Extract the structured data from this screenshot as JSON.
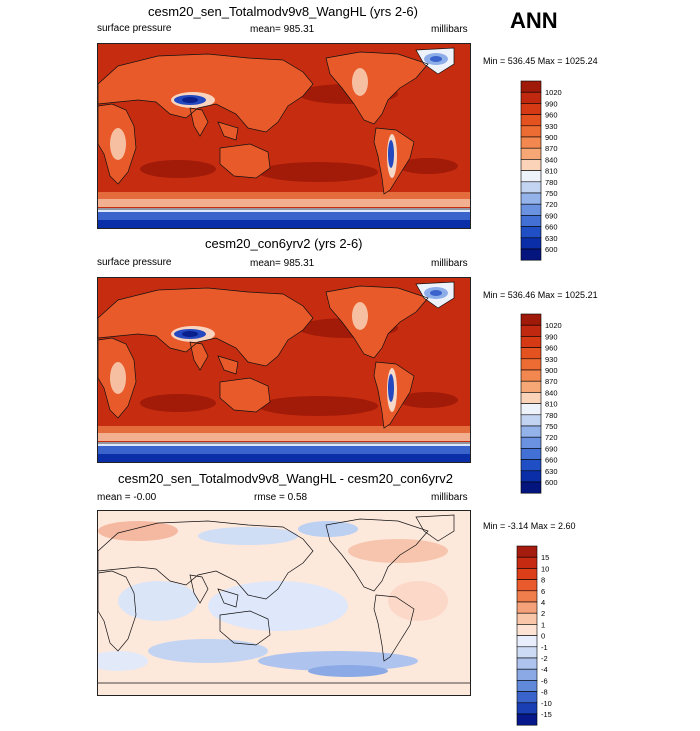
{
  "season": "ANN",
  "panels": [
    {
      "title": "cesm20_sen_Totalmodv9v8_WangHL (yrs 2-6)",
      "left_label": "surface pressure",
      "center_label": "mean= 985.31",
      "right_label": "millibars",
      "minmax": "Min = 536.45 Max = 1025.24",
      "colorbar_levels": [
        "1020",
        "990",
        "960",
        "930",
        "900",
        "870",
        "840",
        "810",
        "780",
        "750",
        "720",
        "690",
        "660",
        "630",
        "600"
      ],
      "colorbar_colors": [
        "#a01a0a",
        "#c0280f",
        "#d63a14",
        "#e4521f",
        "#ec6c34",
        "#f2884f",
        "#f6a775",
        "#fbd3b8",
        "#eef2fb",
        "#c3d4f3",
        "#94b3ea",
        "#6a92e0",
        "#4270d4",
        "#1f4ec5",
        "#0a2ea8",
        "#05157e"
      ],
      "field": "model"
    },
    {
      "title": "cesm20_con6yrv2 (yrs 2-6)",
      "left_label": "surface pressure",
      "center_label": "mean= 985.31",
      "right_label": "millibars",
      "minmax": "Min = 536.46 Max = 1025.21",
      "colorbar_levels": [
        "1020",
        "990",
        "960",
        "930",
        "900",
        "870",
        "840",
        "810",
        "780",
        "750",
        "720",
        "690",
        "660",
        "630",
        "600"
      ],
      "colorbar_colors": [
        "#a01a0a",
        "#c0280f",
        "#d63a14",
        "#e4521f",
        "#ec6c34",
        "#f2884f",
        "#f6a775",
        "#fbd3b8",
        "#eef2fb",
        "#c3d4f3",
        "#94b3ea",
        "#6a92e0",
        "#4270d4",
        "#1f4ec5",
        "#0a2ea8",
        "#05157e"
      ],
      "field": "control"
    },
    {
      "title": "cesm20_sen_Totalmodv9v8_WangHL - cesm20_con6yrv2",
      "left_label": "mean =  -0.00",
      "center_label": "rmse =   0.58",
      "right_label": "millibars",
      "minmax": "Min =  -3.14 Max =   2.60",
      "colorbar_levels": [
        "15",
        "10",
        "8",
        "6",
        "4",
        "2",
        "1",
        "0",
        "-1",
        "-2",
        "-4",
        "-6",
        "-8",
        "-10",
        "-15"
      ],
      "colorbar_colors": [
        "#a51c0e",
        "#c62b12",
        "#dc3e1a",
        "#e95a2c",
        "#f07d4c",
        "#f5a27a",
        "#f9c6a9",
        "#fde3d3",
        "#e8eefb",
        "#cddbf5",
        "#aec4ee",
        "#8aa9e5",
        "#6089da",
        "#3a63cb",
        "#1a3fb4",
        "#07188a"
      ],
      "field": "difference"
    }
  ],
  "chart_data": [
    {
      "type": "heatmap",
      "title": "cesm20_sen_Totalmodv9v8_WangHL (yrs 2-6)",
      "variable": "surface pressure",
      "units": "millibars",
      "mean": 985.31,
      "min": 536.45,
      "max": 1025.24,
      "levels": [
        600,
        630,
        660,
        690,
        720,
        750,
        780,
        810,
        840,
        870,
        900,
        930,
        960,
        990,
        1020
      ]
    },
    {
      "type": "heatmap",
      "title": "cesm20_con6yrv2 (yrs 2-6)",
      "variable": "surface pressure",
      "units": "millibars",
      "mean": 985.31,
      "min": 536.46,
      "max": 1025.21,
      "levels": [
        600,
        630,
        660,
        690,
        720,
        750,
        780,
        810,
        840,
        870,
        900,
        930,
        960,
        990,
        1020
      ]
    },
    {
      "type": "heatmap",
      "title": "cesm20_sen_Totalmodv9v8_WangHL - cesm20_con6yrv2",
      "units": "millibars",
      "mean": -0.0,
      "rmse": 0.58,
      "min": -3.14,
      "max": 2.6,
      "levels": [
        -15,
        -10,
        -8,
        -6,
        -4,
        -2,
        -1,
        0,
        1,
        2,
        4,
        6,
        8,
        10,
        15
      ]
    }
  ]
}
